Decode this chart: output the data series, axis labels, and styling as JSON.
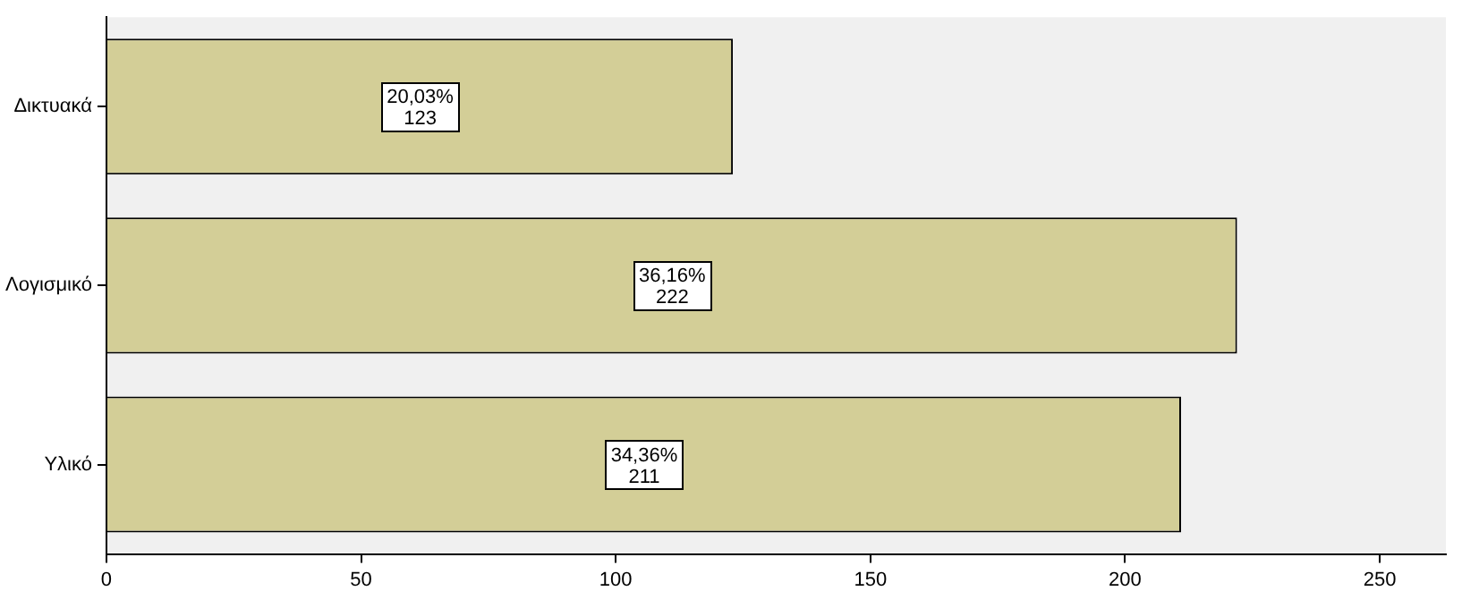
{
  "chart_data": {
    "type": "bar",
    "orientation": "horizontal",
    "categories": [
      "Δικτυακά",
      "Λογισμικό",
      "Υλικό"
    ],
    "values": [
      123,
      222,
      211
    ],
    "color": "#d3ce97",
    "value_labels": [
      "20,03%\n123",
      "36,16%\n222",
      "34,36%\n211"
    ],
    "xlim": [
      0,
      263
    ],
    "xticks": [
      0,
      50,
      100,
      150,
      200,
      250
    ],
    "grid": false,
    "legend": false
  }
}
